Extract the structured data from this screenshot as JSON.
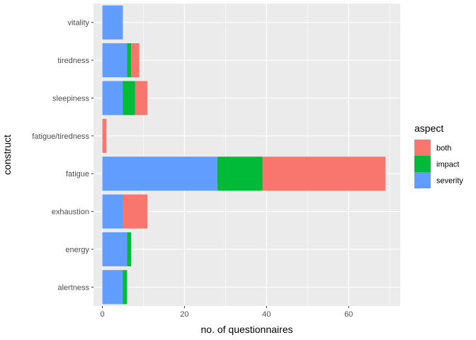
{
  "chart_data": {
    "type": "bar",
    "orientation": "horizontal",
    "stacked": true,
    "xlabel": "no. of questionnaires",
    "ylabel": "construct",
    "xlim": [
      0,
      72
    ],
    "xticks": [
      0,
      20,
      40,
      60
    ],
    "categories": [
      "vitality",
      "tiredness",
      "sleepiness",
      "fatigue/tiredness",
      "fatigue",
      "exhaustion",
      "energy",
      "alertness"
    ],
    "series": [
      {
        "name": "severity",
        "color": "#619CFF",
        "values": [
          5,
          6,
          5,
          0,
          28,
          5,
          6,
          5
        ]
      },
      {
        "name": "impact",
        "color": "#00BA38",
        "values": [
          0,
          1,
          3,
          0,
          11,
          0,
          1,
          1
        ]
      },
      {
        "name": "both",
        "color": "#F8766D",
        "values": [
          0,
          2,
          3,
          1,
          30,
          6,
          0,
          0
        ]
      }
    ],
    "legend": {
      "title": "aspect",
      "position": "right",
      "entries": [
        {
          "label": "both",
          "color": "#F8766D"
        },
        {
          "label": "impact",
          "color": "#00BA38"
        },
        {
          "label": "severity",
          "color": "#619CFF"
        }
      ]
    },
    "grid": true,
    "panel_background": "#EBEBEB",
    "grid_color": "#FFFFFF"
  }
}
